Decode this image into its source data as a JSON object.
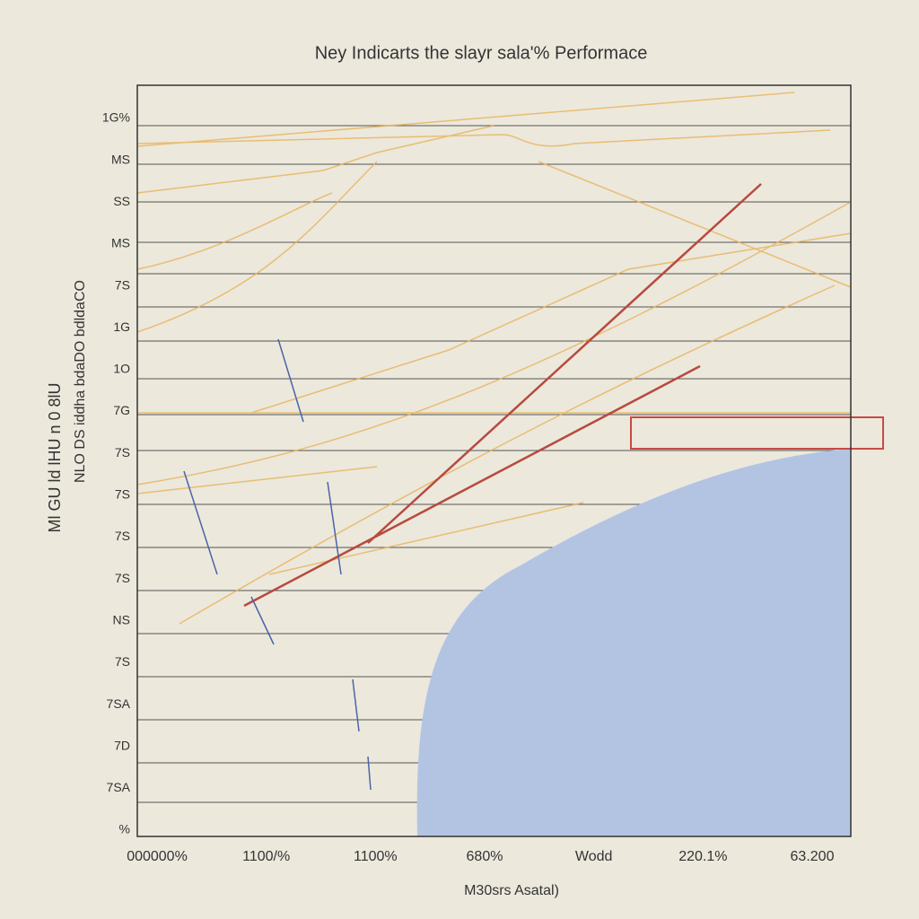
{
  "title": "Ney Indicarts the slayr sala'% Performace",
  "y_axis_label": "Ml GU ld lHU n 0 8lU",
  "y_axis_label_2": "NLO DS iddha bdaDO bdldaCO",
  "y_tick_labels": [
    "1G%",
    "MS",
    "SS",
    "MS",
    "7S",
    "1G",
    "1O",
    "7G",
    "7S",
    "7S",
    "7S",
    "7S",
    "NS",
    "7S",
    "7SA",
    "7D",
    "7SA",
    "%"
  ],
  "x_tick_labels": [
    "000000%",
    "1100/%",
    "1100%",
    "680%",
    "Wodd",
    "220.1%",
    "63.200"
  ],
  "x_axis_label": "M30srs Asatal)"
}
